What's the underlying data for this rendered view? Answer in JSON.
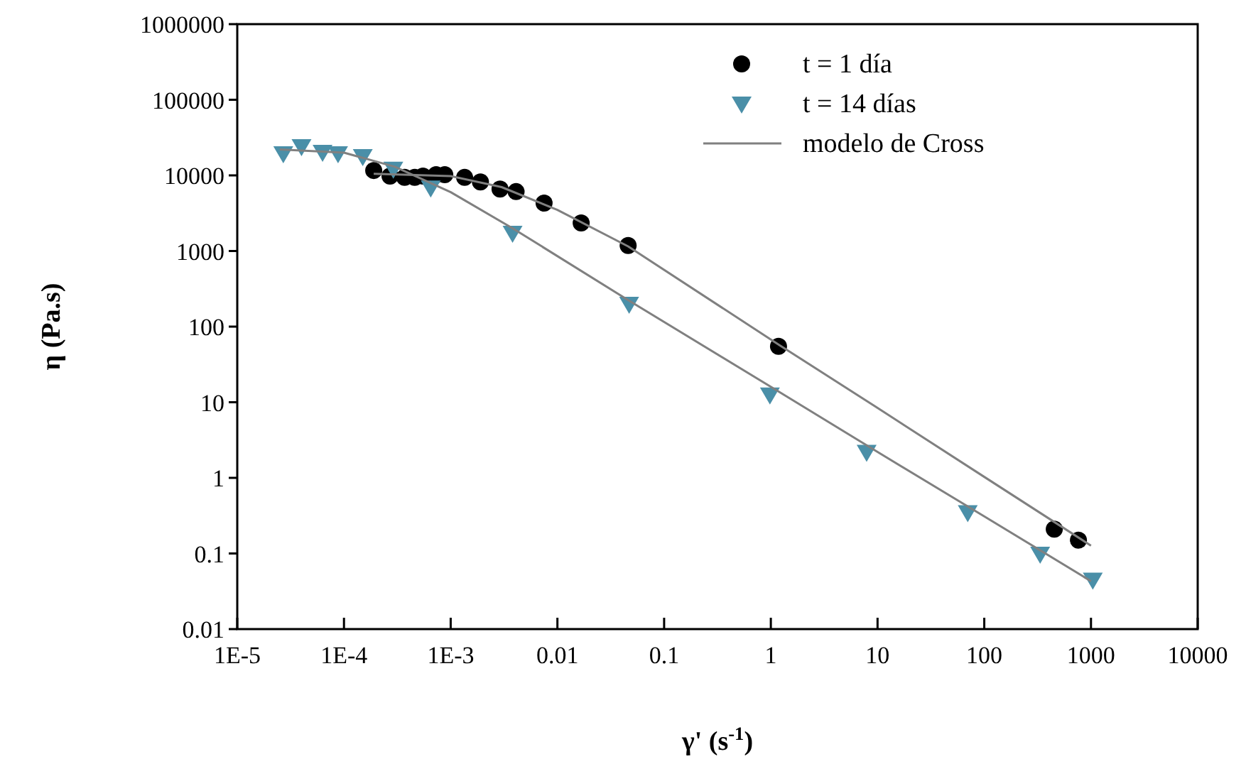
{
  "chart_data": {
    "type": "scatter",
    "log": "xy",
    "xlabel": "γ' (s$^{-1}$)",
    "ylabel": "η (Pa.s)",
    "xlim": [
      1e-05,
      10000
    ],
    "ylim": [
      0.01,
      1000000
    ],
    "xticks": [
      {
        "value": 1e-05,
        "label": "1E-5"
      },
      {
        "value": 0.0001,
        "label": "1E-4"
      },
      {
        "value": 0.001,
        "label": "1E-3"
      },
      0.01,
      0.1,
      1,
      10,
      100,
      1000,
      10000
    ],
    "yticks": [
      0.01,
      0.1,
      1,
      10,
      100,
      1000,
      10000,
      100000,
      1000000
    ],
    "grid": false,
    "legend": "top right",
    "series": [
      {
        "name": "t = 1 día",
        "marker": "circle",
        "color": "#000000",
        "x": [
          0.00019,
          0.00027,
          0.00037,
          0.00046,
          0.00055,
          0.00073,
          0.00088,
          0.00135,
          0.0019,
          0.0029,
          0.0041,
          0.0075,
          0.0167,
          0.046,
          1.18,
          453,
          763
        ],
        "values": [
          11600,
          9800,
          9400,
          9400,
          9800,
          10200,
          10200,
          9400,
          8200,
          6600,
          6100,
          4300,
          2350,
          1180,
          55,
          0.21,
          0.15
        ]
      },
      {
        "name": "t = 14 días",
        "marker": "triangle",
        "color": "#4a8fa8",
        "x": [
          2.7e-05,
          4e-05,
          6.3e-05,
          8.8e-05,
          0.00015,
          0.00029,
          0.00065,
          0.0038,
          0.047,
          0.98,
          7.9,
          70,
          334,
          1040
        ],
        "values": [
          19500,
          24300,
          20400,
          19500,
          17900,
          12200,
          6900,
          1740,
          200,
          12.6,
          2.2,
          0.35,
          0.099,
          0.045
        ]
      },
      {
        "name": "modelo de Cross",
        "type": "line",
        "color": "#808080",
        "x": [
          0.00019,
          0.001,
          0.003,
          0.01,
          0.046,
          1.18,
          10,
          100,
          1000
        ],
        "values": [
          10500,
          9800,
          7000,
          3500,
          1150,
          58,
          8.4,
          1.03,
          0.127
        ]
      },
      {
        "type": "line",
        "color": "#808080",
        "x": [
          2.5e-05,
          0.0001,
          0.0003,
          0.001,
          0.0038,
          0.047,
          1,
          10,
          100,
          1000
        ],
        "values": [
          22000,
          20000,
          13000,
          6000,
          2000,
          220,
          16,
          2.2,
          0.31,
          0.043
        ]
      }
    ]
  }
}
